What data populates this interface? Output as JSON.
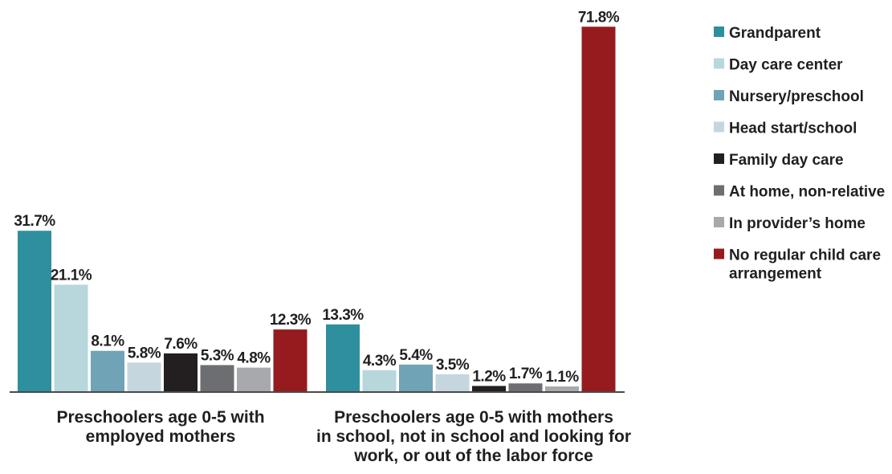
{
  "chart_data": {
    "type": "bar",
    "categories": [
      [
        "Preschoolers age 0-5 with",
        "employed mothers"
      ],
      [
        "Preschoolers age 0-5 with mothers",
        "in school, not in school and looking for",
        "work, or out of the labor force"
      ]
    ],
    "series": [
      {
        "name": "Grandparent",
        "color": "#2e8f9e",
        "values": [
          31.7,
          13.3
        ],
        "labels": [
          "31.7%",
          "13.3%"
        ]
      },
      {
        "name": "Day care center",
        "color": "#b7d7dd",
        "values": [
          21.1,
          4.3
        ],
        "labels": [
          "21.1%",
          "4.3%"
        ]
      },
      {
        "name": "Nursery/preschool",
        "color": "#6fa3b5",
        "values": [
          8.1,
          5.4
        ],
        "labels": [
          "8.1%",
          "5.4%"
        ]
      },
      {
        "name": "Head start/school",
        "color": "#c5d6de",
        "values": [
          5.8,
          3.5
        ],
        "labels": [
          "5.8%",
          "3.5%"
        ]
      },
      {
        "name": "Family day care",
        "color": "#231f20",
        "values": [
          7.6,
          1.2
        ],
        "labels": [
          "7.6%",
          "1.2%"
        ]
      },
      {
        "name": "At home, non-relative",
        "color": "#6d6e71",
        "values": [
          5.3,
          1.7
        ],
        "labels": [
          "5.3%",
          "1.7%"
        ]
      },
      {
        "name": "In provider’s home",
        "color": "#a7a9ac",
        "values": [
          4.8,
          1.1
        ],
        "labels": [
          "4.8%",
          "1.1%"
        ]
      },
      {
        "name": "No regular child care arrangement",
        "legend_lines": [
          "No regular child care",
          "arrangement"
        ],
        "color": "#961b1e",
        "values": [
          12.3,
          71.8
        ],
        "labels": [
          "12.3%",
          "71.8%"
        ]
      }
    ],
    "ylim": [
      0,
      72
    ],
    "grid": false,
    "legend_position": "right",
    "title": "",
    "xlabel": "",
    "ylabel": ""
  }
}
